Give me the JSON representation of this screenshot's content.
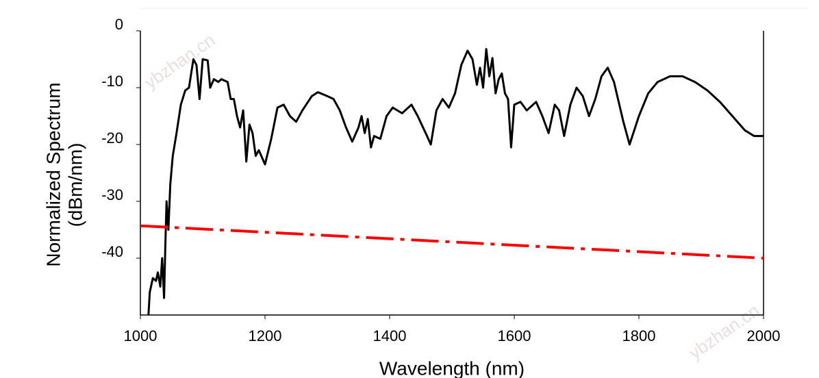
{
  "chart_data": {
    "type": "line",
    "xlabel": "Wavelength (nm)",
    "ylabel": [
      "Normalized Spectrum",
      "(dBm/nm)"
    ],
    "watermarks": [
      "ybzhan.cn",
      "ybzhan.cn"
    ],
    "xlim": [
      1000,
      2000
    ],
    "xticks": [
      1000,
      1200,
      1400,
      1600,
      1800,
      2000
    ],
    "ylim": [
      -50,
      0
    ],
    "yticks": [
      0,
      -10,
      -20,
      -30,
      -40
    ],
    "series": [
      {
        "color": "#000000",
        "dash": false,
        "x": [
          1013,
          1015,
          1020,
          1025,
          1028,
          1032,
          1035,
          1038,
          1040,
          1042,
          1045,
          1048,
          1052,
          1058,
          1065,
          1072,
          1078,
          1085,
          1090,
          1095,
          1100,
          1108,
          1112,
          1118,
          1125,
          1130,
          1140,
          1145,
          1150,
          1155,
          1160,
          1165,
          1170,
          1175,
          1180,
          1185,
          1190,
          1200,
          1210,
          1220,
          1230,
          1240,
          1250,
          1260,
          1275,
          1285,
          1300,
          1310,
          1320,
          1330,
          1340,
          1350,
          1355,
          1360,
          1365,
          1370,
          1375,
          1385,
          1395,
          1405,
          1420,
          1435,
          1445,
          1460,
          1466,
          1475,
          1485,
          1495,
          1505,
          1515,
          1525,
          1533,
          1540,
          1545,
          1550,
          1555,
          1560,
          1565,
          1570,
          1575,
          1580,
          1585,
          1590,
          1595,
          1600,
          1610,
          1620,
          1635,
          1645,
          1655,
          1665,
          1672,
          1680,
          1690,
          1700,
          1710,
          1720,
          1730,
          1740,
          1750,
          1760,
          1775,
          1785,
          1800,
          1815,
          1830,
          1850,
          1870,
          1890,
          1910,
          1930,
          1950,
          1970,
          1985,
          2000
        ],
        "values": [
          -50,
          -46,
          -43.5,
          -44,
          -42.5,
          -45,
          -40,
          -47,
          -38,
          -30,
          -35,
          -27,
          -22,
          -18,
          -13,
          -10.5,
          -10,
          -5,
          -6,
          -12,
          -5,
          -5.2,
          -10,
          -8.5,
          -9,
          -8.5,
          -9,
          -12,
          -12,
          -15,
          -17,
          -14,
          -23,
          -16.5,
          -18,
          -22,
          -21,
          -23.5,
          -19,
          -13.5,
          -13,
          -15,
          -16,
          -14,
          -11.5,
          -10.8,
          -11.5,
          -12,
          -14,
          -17,
          -19.5,
          -17,
          -15,
          -18,
          -15.5,
          -20.5,
          -18.5,
          -19,
          -15,
          -13.5,
          -14.5,
          -13,
          -15,
          -18.5,
          -20,
          -14,
          -12,
          -13.5,
          -11,
          -6,
          -3.5,
          -5,
          -9.5,
          -6.5,
          -10,
          -3.2,
          -8,
          -4.8,
          -11,
          -8.5,
          -7.5,
          -11,
          -12,
          -20.5,
          -13,
          -12.5,
          -14,
          -12.5,
          -15,
          -18,
          -13,
          -14,
          -18.5,
          -13,
          -10,
          -11.5,
          -15,
          -12,
          -8,
          -6.5,
          -9,
          -16,
          -20,
          -15,
          -11,
          -9,
          -8,
          -8,
          -9,
          -10.5,
          -12.5,
          -15,
          -17.5,
          -18.5,
          -18.5
        ]
      },
      {
        "color": "#ff0000",
        "dash": true,
        "x": [
          1000,
          2000
        ],
        "values": [
          -34.3,
          -40
        ]
      }
    ]
  }
}
